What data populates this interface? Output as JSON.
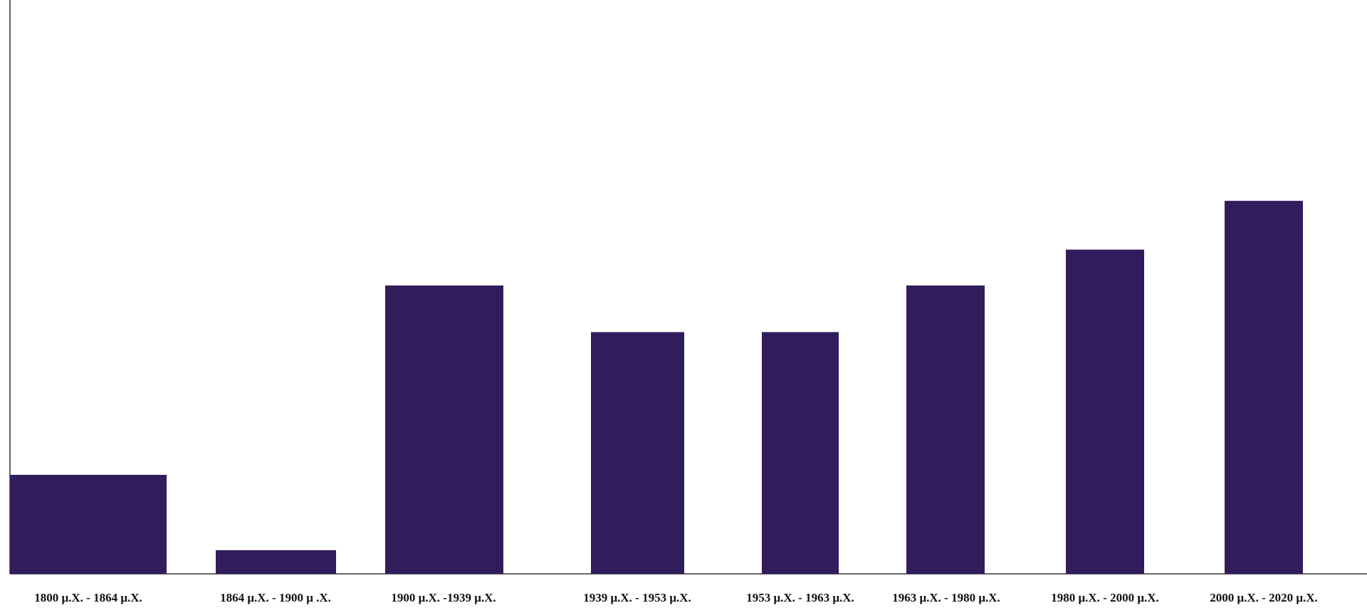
{
  "chart_data": {
    "type": "bar",
    "title": "",
    "xlabel": "",
    "ylabel": "",
    "categories": [
      "1800 μ.Χ. - 1864 μ.Χ.",
      "1864 μ.Χ. - 1900 μ .Χ.",
      "1900 μ.Χ. -1939 μ.Χ.",
      "1939 μ.Χ. - 1953 μ.Χ.",
      "1953 μ.Χ. - 1963 μ.Χ.",
      "1963 μ.Χ. - 1980 μ.Χ.",
      "1980 μ.Χ. - 2000 μ.Χ.",
      "2000 μ.Χ. - 2020 μ.Χ."
    ],
    "values": [
      138,
      33,
      402,
      337,
      337,
      402,
      452,
      520
    ],
    "ylim": [
      0,
      800
    ],
    "grid": false,
    "legend": "none",
    "colors": {
      "bar": "#311d5c",
      "axis": "#666666"
    }
  }
}
